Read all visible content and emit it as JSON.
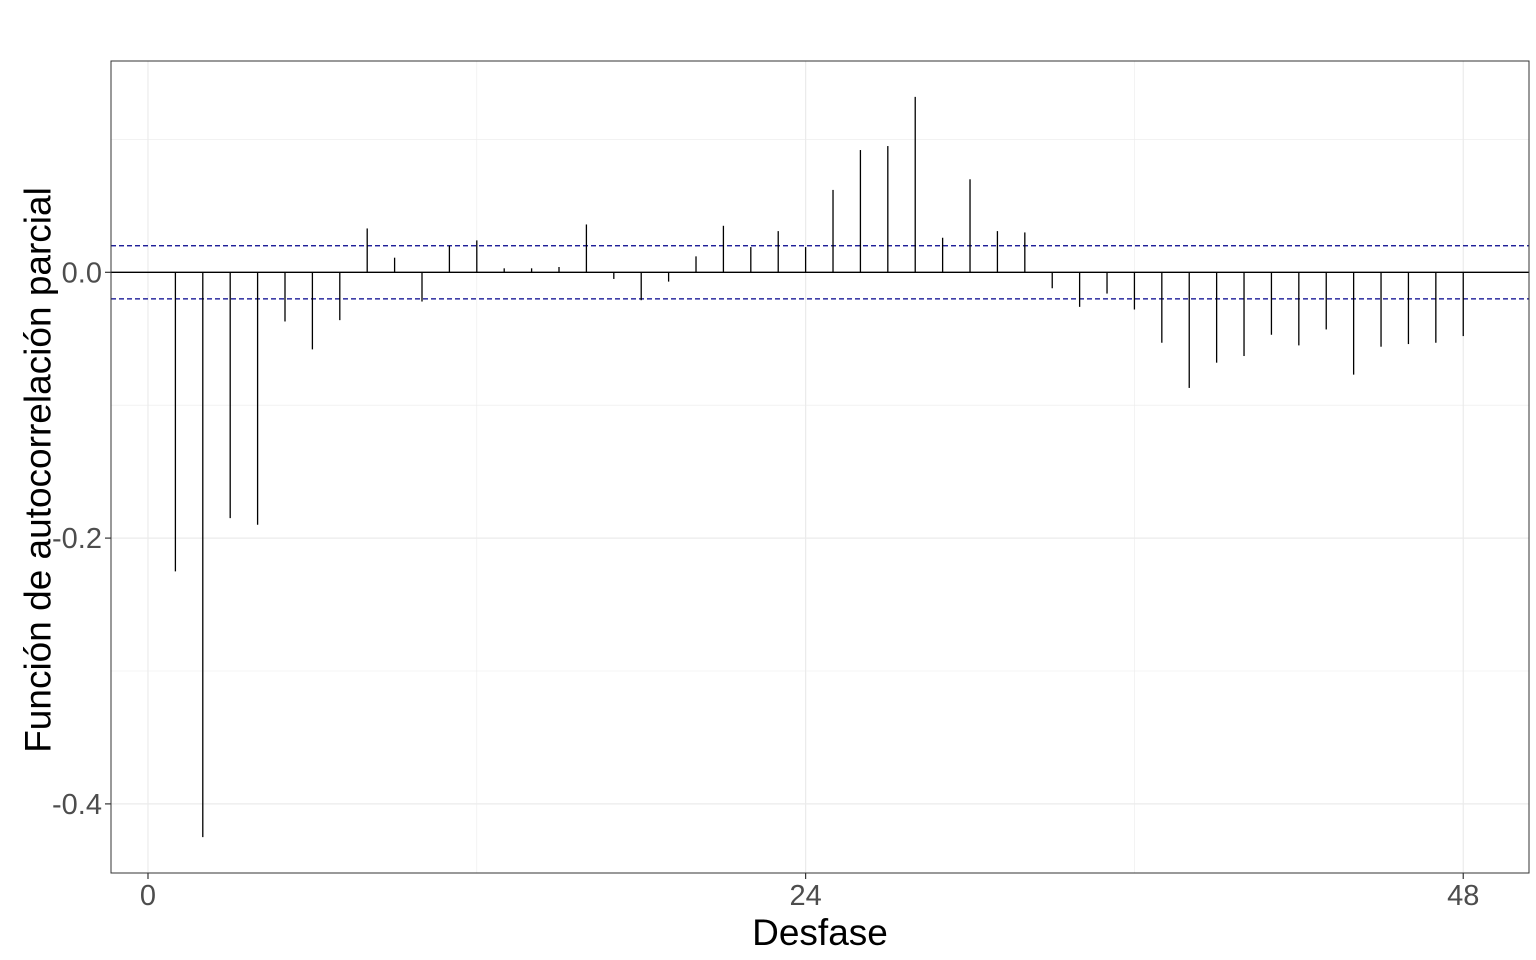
{
  "chart_data": {
    "type": "bar",
    "title": "",
    "xlabel": "Desfase",
    "ylabel": "Función de autocorrelación parcial",
    "x": [
      1,
      2,
      3,
      4,
      5,
      6,
      7,
      8,
      9,
      10,
      11,
      12,
      13,
      14,
      15,
      16,
      17,
      18,
      19,
      20,
      21,
      22,
      23,
      24,
      25,
      26,
      27,
      28,
      29,
      30,
      31,
      32,
      33,
      34,
      35,
      36,
      37,
      38,
      39,
      40,
      41,
      42,
      43,
      44,
      45,
      46,
      47,
      48
    ],
    "values": [
      -0.225,
      -0.425,
      -0.185,
      -0.19,
      -0.037,
      -0.058,
      -0.036,
      0.033,
      0.011,
      -0.022,
      0.02,
      0.024,
      0.003,
      0.003,
      0.004,
      0.036,
      -0.005,
      -0.021,
      -0.007,
      0.012,
      0.035,
      0.019,
      0.031,
      0.019,
      0.062,
      0.092,
      0.095,
      0.132,
      0.026,
      0.07,
      0.031,
      0.03,
      -0.012,
      -0.026,
      -0.016,
      -0.028,
      -0.053,
      -0.087,
      -0.068,
      -0.063,
      -0.047,
      -0.055,
      -0.043,
      -0.077,
      -0.056,
      -0.054,
      -0.053,
      -0.048
    ],
    "ci": [
      -0.02,
      0.02
    ],
    "xlim": [
      -1.35,
      50.4
    ],
    "ylim": [
      -0.452,
      0.159
    ],
    "xticks": [
      0,
      24,
      48
    ],
    "xtick_labels": [
      "0",
      "24",
      "48"
    ],
    "yticks": [
      -0.4,
      -0.2,
      0.0
    ],
    "ytick_labels": [
      "-0.4",
      "-0.2",
      "0.0"
    ],
    "grid": true,
    "colors": {
      "bars": "#000000",
      "ci_line": "#00008b",
      "grid": "#ebebeb",
      "panel_border": "#333333"
    }
  }
}
